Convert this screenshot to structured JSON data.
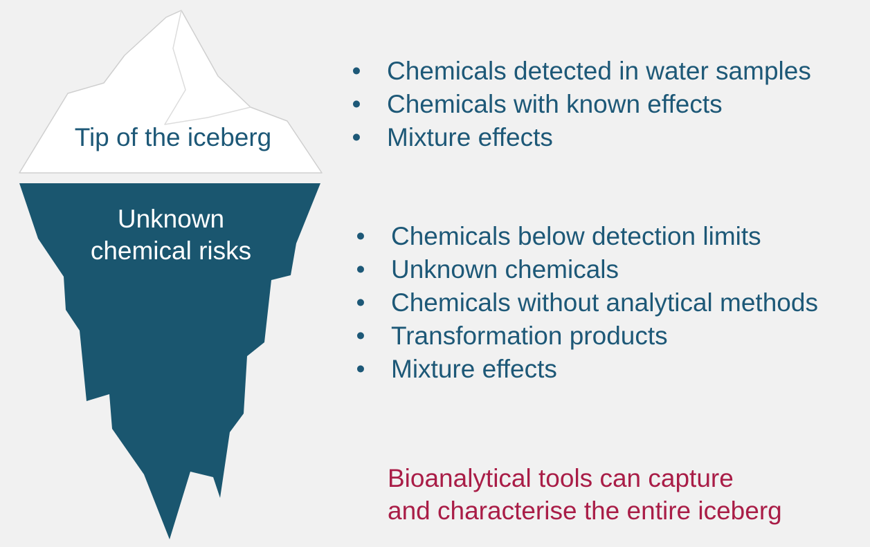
{
  "colors": {
    "background": "#f1f1f1",
    "ice_tip": "#ffffff",
    "ice_tip_outline": "#cfcfcf",
    "iceberg_underwater": "#1a566f",
    "list_text": "#1d5877",
    "conclusion_text": "#a91d47"
  },
  "iceberg": {
    "tip_label": "Tip of the iceberg",
    "underwater_label_lines": [
      "Unknown",
      "chemical risks"
    ]
  },
  "visible_list": {
    "bullet_symbol": "•",
    "items": [
      "Chemicals detected in water samples",
      "Chemicals with known effects",
      "Mixture effects"
    ]
  },
  "hidden_list": {
    "bullet_symbol": "•",
    "items": [
      "Chemicals below detection limits",
      "Unknown chemicals",
      "Chemicals without analytical methods",
      "Transformation products",
      "Mixture effects"
    ]
  },
  "conclusion": {
    "lines": [
      "Bioanalytical tools can capture",
      "and characterise the entire iceberg"
    ]
  }
}
